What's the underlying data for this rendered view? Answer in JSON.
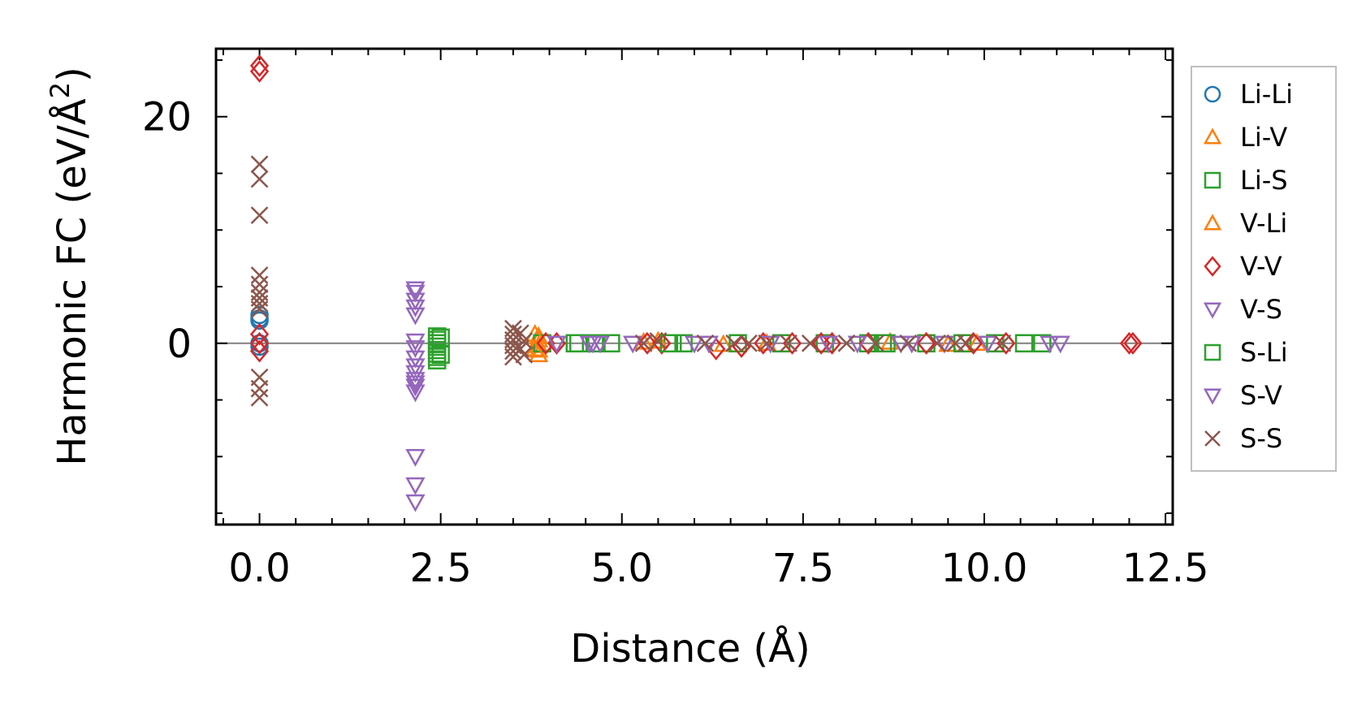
{
  "chart_data": {
    "type": "scatter",
    "xlabel": "Distance (Å)",
    "ylabel_main": "Harmonic FC (eV/Å",
    "ylabel_sup": "2",
    "ylabel_end": ")",
    "xlim": [
      -0.6,
      12.6
    ],
    "ylim": [
      -16,
      26
    ],
    "xticks": [
      0.0,
      2.5,
      5.0,
      7.5,
      10.0,
      12.5
    ],
    "xtick_labels": [
      "0.0",
      "2.5",
      "5.0",
      "7.5",
      "10.0",
      "12.5"
    ],
    "yticks": [
      0,
      20
    ],
    "ytick_labels": [
      "0",
      "20"
    ],
    "x_minor_step": 0.5,
    "y_minor_step": 5,
    "zero_line": 0,
    "legend_position": "outside-right",
    "series": [
      {
        "name": "Li-Li",
        "marker": "circle",
        "color": "#1f77b4",
        "points": [
          [
            0,
            2.5
          ],
          [
            0,
            2.2
          ],
          [
            0,
            2.0
          ],
          [
            0,
            0
          ],
          [
            0,
            -0.3
          ]
        ]
      },
      {
        "name": "Li-V",
        "marker": "triangle-up",
        "color": "#ff7f0e",
        "points": [
          [
            3.85,
            0.6
          ],
          [
            3.85,
            0.3
          ],
          [
            3.85,
            -0.2
          ],
          [
            3.85,
            -0.6
          ],
          [
            3.85,
            -1.0
          ],
          [
            5.3,
            0.1
          ],
          [
            6.4,
            -0.1
          ],
          [
            8.7,
            0.1
          ],
          [
            9.5,
            -0.1
          ]
        ]
      },
      {
        "name": "Li-S",
        "marker": "square",
        "color": "#2ca02c",
        "points": [
          [
            2.45,
            0.6
          ],
          [
            2.45,
            0.3
          ],
          [
            2.45,
            0
          ],
          [
            2.45,
            -0.3
          ],
          [
            2.45,
            -0.6
          ],
          [
            2.45,
            -0.9
          ],
          [
            2.45,
            -1.2
          ],
          [
            2.45,
            -1.5
          ],
          [
            3.9,
            0
          ],
          [
            4.35,
            0
          ],
          [
            4.65,
            0
          ],
          [
            4.85,
            0
          ],
          [
            5.7,
            0
          ],
          [
            5.85,
            0
          ],
          [
            6.6,
            0
          ],
          [
            7.2,
            0
          ],
          [
            7.8,
            0
          ],
          [
            8.4,
            0
          ],
          [
            8.65,
            0
          ],
          [
            9.2,
            0
          ],
          [
            9.7,
            0
          ],
          [
            10.15,
            0
          ],
          [
            10.55,
            0
          ],
          [
            10.8,
            0
          ]
        ]
      },
      {
        "name": "V-Li",
        "marker": "triangle-up",
        "color": "#ff7f0e",
        "points": [
          [
            3.8,
            0.8
          ],
          [
            3.8,
            -0.5
          ],
          [
            5.5,
            0.2
          ],
          [
            7.0,
            0
          ],
          [
            9.9,
            0
          ]
        ]
      },
      {
        "name": "V-V",
        "marker": "diamond",
        "color": "#d62728",
        "points": [
          [
            0,
            24.5
          ],
          [
            0,
            24
          ],
          [
            0,
            0.8
          ],
          [
            0,
            0
          ],
          [
            0,
            -0.7
          ],
          [
            3.95,
            0
          ],
          [
            4.1,
            0
          ],
          [
            5.35,
            0
          ],
          [
            5.55,
            0
          ],
          [
            6.3,
            -0.5
          ],
          [
            6.65,
            -0.3
          ],
          [
            6.95,
            0
          ],
          [
            7.35,
            0
          ],
          [
            7.75,
            0
          ],
          [
            7.9,
            0
          ],
          [
            8.4,
            0
          ],
          [
            9.2,
            0
          ],
          [
            9.85,
            0
          ],
          [
            10.3,
            0
          ],
          [
            12.0,
            0
          ],
          [
            12.05,
            0
          ]
        ]
      },
      {
        "name": "V-S",
        "marker": "triangle-down",
        "color": "#9467bd",
        "points": [
          [
            2.15,
            4.5
          ],
          [
            2.15,
            3.8
          ],
          [
            2.15,
            3.2
          ],
          [
            2.15,
            2.5
          ],
          [
            2.15,
            0.2
          ],
          [
            2.15,
            -0.4
          ],
          [
            2.15,
            -1.3
          ],
          [
            2.15,
            -2.0
          ],
          [
            2.15,
            -2.6
          ],
          [
            2.15,
            -3.2
          ],
          [
            2.15,
            -3.8
          ],
          [
            2.15,
            -4.3
          ],
          [
            2.15,
            -10
          ],
          [
            2.15,
            -12.5
          ],
          [
            2.15,
            -14
          ],
          [
            4.1,
            0
          ],
          [
            4.6,
            0
          ],
          [
            4.7,
            0
          ],
          [
            5.15,
            0
          ],
          [
            6.0,
            0
          ],
          [
            7.05,
            0
          ],
          [
            7.85,
            0
          ],
          [
            8.25,
            0
          ],
          [
            8.85,
            0
          ],
          [
            9.45,
            0
          ],
          [
            10.05,
            0
          ],
          [
            10.9,
            0
          ],
          [
            11.05,
            0
          ]
        ]
      },
      {
        "name": "S-Li",
        "marker": "square",
        "color": "#2ca02c",
        "points": [
          [
            2.5,
            0.5
          ],
          [
            2.5,
            -1.0
          ],
          [
            4.4,
            0
          ],
          [
            5.65,
            0
          ],
          [
            8.6,
            0
          ]
        ]
      },
      {
        "name": "S-V",
        "marker": "triangle-down",
        "color": "#9467bd",
        "points": [
          [
            2.15,
            4.8
          ],
          [
            2.15,
            -3.5
          ],
          [
            4.55,
            0
          ],
          [
            6.2,
            0
          ],
          [
            9.0,
            0
          ]
        ]
      },
      {
        "name": "S-S",
        "marker": "x",
        "color": "#8c564b",
        "points": [
          [
            0,
            15.8
          ],
          [
            0,
            14.5
          ],
          [
            0,
            11.3
          ],
          [
            0,
            6
          ],
          [
            0,
            5.2
          ],
          [
            0,
            4.5
          ],
          [
            0,
            4.0
          ],
          [
            0,
            3.5
          ],
          [
            0,
            3.0
          ],
          [
            0,
            -3
          ],
          [
            0,
            -4
          ],
          [
            0,
            -4.8
          ],
          [
            3.5,
            1.3
          ],
          [
            3.5,
            0.8
          ],
          [
            3.5,
            0.3
          ],
          [
            3.5,
            -0.2
          ],
          [
            3.5,
            -0.7
          ],
          [
            3.5,
            -1.2
          ],
          [
            3.6,
            0.9
          ],
          [
            3.6,
            -0.5
          ],
          [
            3.65,
            0.2
          ],
          [
            3.65,
            -1.0
          ],
          [
            5.3,
            0
          ],
          [
            5.5,
            0.2
          ],
          [
            6.15,
            0
          ],
          [
            6.55,
            0
          ],
          [
            6.75,
            0
          ],
          [
            7.0,
            0
          ],
          [
            7.3,
            0
          ],
          [
            7.6,
            0
          ],
          [
            8.1,
            0
          ],
          [
            8.5,
            0
          ],
          [
            8.95,
            0
          ],
          [
            9.35,
            0
          ],
          [
            9.6,
            0
          ],
          [
            9.75,
            0
          ],
          [
            10.25,
            0
          ]
        ]
      }
    ]
  }
}
